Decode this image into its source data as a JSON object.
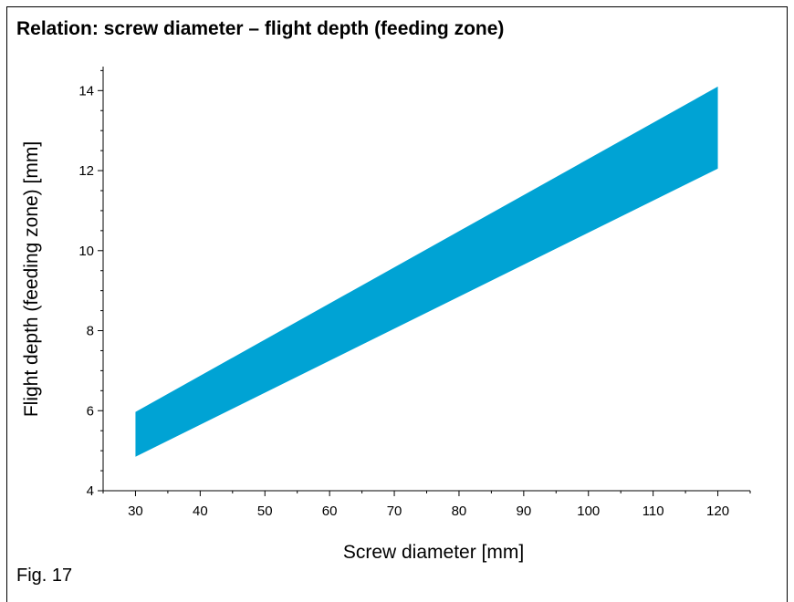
{
  "figure": {
    "title": "Relation: screw diameter – flight depth (feeding zone)",
    "caption": "Fig. 17"
  },
  "chart_data": {
    "type": "area",
    "title": "Relation: screw diameter – flight depth (feeding zone)",
    "xlabel": "Screw diameter [mm]",
    "ylabel": "Flight depth (feeding zone) [mm]",
    "xlim": [
      25,
      125
    ],
    "ylim": [
      4,
      14.6
    ],
    "x_ticks": [
      30,
      40,
      50,
      60,
      70,
      80,
      90,
      100,
      110,
      120
    ],
    "y_ticks": [
      4,
      6,
      8,
      10,
      12,
      14
    ],
    "grid": false,
    "fill_color": "#00a3d4",
    "series": [
      {
        "x": [
          30,
          120
        ],
        "upper": [
          5.97,
          14.1
        ],
        "lower": [
          4.85,
          12.05
        ]
      }
    ]
  }
}
